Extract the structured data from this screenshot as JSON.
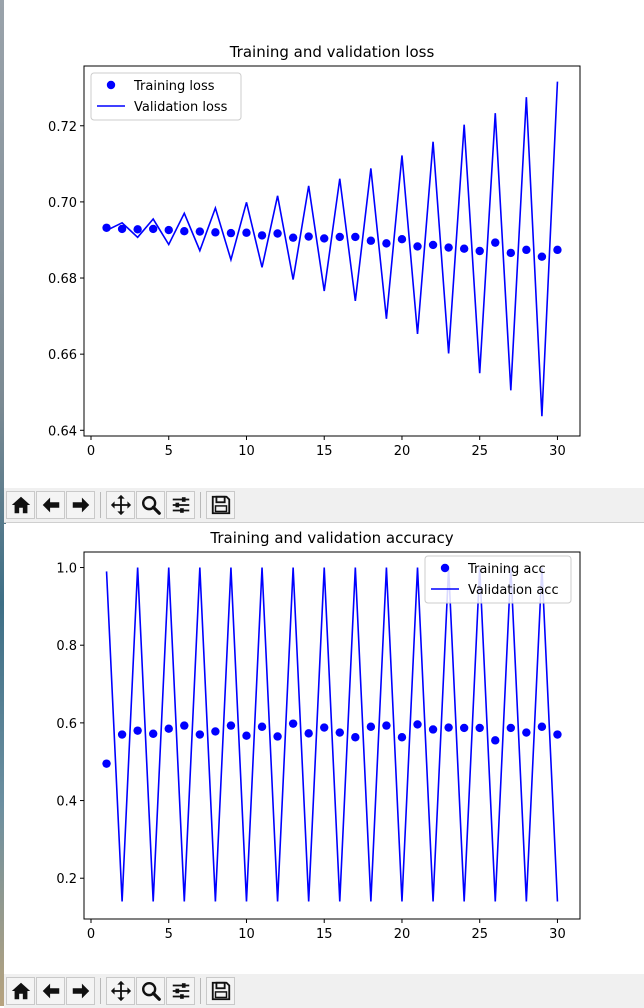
{
  "toolbar": {
    "buttons": [
      {
        "name": "home-icon"
      },
      {
        "name": "back-arrow-icon"
      },
      {
        "name": "forward-arrow-icon"
      },
      {
        "name": "pan-icon"
      },
      {
        "name": "zoom-icon"
      },
      {
        "name": "configure-subplots-icon"
      },
      {
        "name": "save-icon"
      }
    ]
  },
  "chart_data": [
    {
      "type": "line",
      "title": "Training and validation loss",
      "xlabel": "",
      "ylabel": "",
      "xlim": [
        -0.45,
        31.45
      ],
      "ylim": [
        0.6385,
        0.7357
      ],
      "xticks": [
        0,
        5,
        10,
        15,
        20,
        25,
        30
      ],
      "yticks": [
        0.64,
        0.66,
        0.68,
        0.7,
        0.72
      ],
      "ytick_labels": [
        "0.64",
        "0.66",
        "0.68",
        "0.70",
        "0.72"
      ],
      "grid": false,
      "legend_position": "upper-left",
      "x": [
        1,
        2,
        3,
        4,
        5,
        6,
        7,
        8,
        9,
        10,
        11,
        12,
        13,
        14,
        15,
        16,
        17,
        18,
        19,
        20,
        21,
        22,
        23,
        24,
        25,
        26,
        27,
        28,
        29,
        30
      ],
      "series": [
        {
          "name": "Training loss",
          "style": "dots",
          "color": "#0000ff",
          "values": [
            0.6932,
            0.6929,
            0.6928,
            0.6929,
            0.6926,
            0.6923,
            0.6922,
            0.692,
            0.6918,
            0.6919,
            0.6912,
            0.6917,
            0.6906,
            0.6909,
            0.6904,
            0.6908,
            0.6908,
            0.6898,
            0.6891,
            0.6902,
            0.6883,
            0.6887,
            0.688,
            0.6877,
            0.6871,
            0.6893,
            0.6866,
            0.6874,
            0.6856,
            0.6874
          ]
        },
        {
          "name": "Validation loss",
          "style": "line",
          "color": "#0000ff",
          "values": [
            0.6925,
            0.6945,
            0.6907,
            0.6955,
            0.6888,
            0.697,
            0.6872,
            0.6984,
            0.6848,
            0.6999,
            0.6828,
            0.7016,
            0.6796,
            0.7042,
            0.6766,
            0.7061,
            0.674,
            0.7088,
            0.6693,
            0.7122,
            0.6653,
            0.7158,
            0.6602,
            0.7203,
            0.655,
            0.7233,
            0.6505,
            0.7275,
            0.6437,
            0.7316
          ]
        }
      ]
    },
    {
      "type": "line",
      "title": "Training and validation accuracy",
      "xlabel": "",
      "ylabel": "",
      "xlim": [
        -0.45,
        31.45
      ],
      "ylim": [
        0.095,
        1.04
      ],
      "xticks": [
        0,
        5,
        10,
        15,
        20,
        25,
        30
      ],
      "yticks": [
        0.2,
        0.4,
        0.6,
        0.8,
        1.0
      ],
      "ytick_labels": [
        "0.2",
        "0.4",
        "0.6",
        "0.8",
        "1.0"
      ],
      "grid": false,
      "legend_position": "upper-right",
      "x": [
        1,
        2,
        3,
        4,
        5,
        6,
        7,
        8,
        9,
        10,
        11,
        12,
        13,
        14,
        15,
        16,
        17,
        18,
        19,
        20,
        21,
        22,
        23,
        24,
        25,
        26,
        27,
        28,
        29,
        30
      ],
      "series": [
        {
          "name": "Training acc",
          "style": "dots",
          "color": "#0000ff",
          "values": [
            0.495,
            0.57,
            0.58,
            0.572,
            0.585,
            0.593,
            0.57,
            0.578,
            0.593,
            0.567,
            0.59,
            0.565,
            0.598,
            0.573,
            0.588,
            0.575,
            0.563,
            0.59,
            0.593,
            0.563,
            0.596,
            0.583,
            0.588,
            0.587,
            0.587,
            0.555,
            0.587,
            0.575,
            0.59,
            0.57
          ]
        },
        {
          "name": "Validation acc",
          "style": "line",
          "color": "#0000ff",
          "values": [
            0.99,
            0.14,
            1.0,
            0.14,
            1.0,
            0.14,
            1.0,
            0.14,
            1.0,
            0.14,
            1.0,
            0.14,
            1.0,
            0.14,
            1.0,
            0.14,
            1.0,
            0.14,
            1.0,
            0.14,
            1.0,
            0.14,
            1.0,
            0.14,
            1.0,
            0.14,
            1.0,
            0.14,
            1.0,
            0.14
          ]
        }
      ]
    }
  ]
}
